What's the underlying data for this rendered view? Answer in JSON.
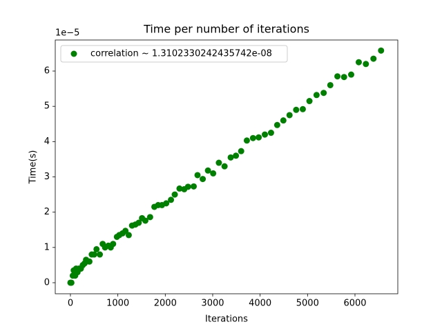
{
  "chart_data": {
    "type": "scatter",
    "title": "Time per number of iterations",
    "x_label": "Iterations",
    "y_label": "Time(s)",
    "y_offset_text": "1e−5",
    "legend_position": "upper left",
    "xlim": [
      -320,
      6903
    ],
    "ylim": [
      -0.313,
      6.88
    ],
    "xticks": [
      0,
      1000,
      2000,
      3000,
      4000,
      5000,
      6000
    ],
    "yticks": [
      0,
      1,
      2,
      3,
      4,
      5,
      6
    ],
    "series": [
      {
        "name": "correlation ~ 1.3102330242435742e-08",
        "color": "#008000",
        "x": [
          0,
          20,
          50,
          70,
          100,
          120,
          150,
          180,
          220,
          260,
          300,
          330,
          400,
          450,
          500,
          550,
          620,
          680,
          730,
          800,
          850,
          900,
          980,
          1030,
          1100,
          1160,
          1230,
          1300,
          1370,
          1440,
          1510,
          1580,
          1680,
          1770,
          1850,
          1930,
          2020,
          2120,
          2200,
          2300,
          2400,
          2480,
          2600,
          2680,
          2790,
          2900,
          3010,
          3130,
          3250,
          3380,
          3490,
          3600,
          3720,
          3850,
          3970,
          4100,
          4230,
          4360,
          4490,
          4620,
          4760,
          4900,
          5040,
          5190,
          5340,
          5480,
          5630,
          5770,
          5920,
          6080,
          6230,
          6390,
          6550
        ],
        "values": [
          0,
          0,
          0.2,
          0.35,
          0.2,
          0.4,
          0.3,
          0.4,
          0.4,
          0.5,
          0.55,
          0.65,
          0.6,
          0.8,
          0.8,
          0.95,
          0.8,
          1.1,
          1.0,
          1.05,
          1.0,
          1.1,
          1.3,
          1.35,
          1.4,
          1.47,
          1.35,
          1.62,
          1.65,
          1.7,
          1.83,
          1.76,
          1.86,
          2.15,
          2.2,
          2.2,
          2.25,
          2.35,
          2.5,
          2.67,
          2.65,
          2.72,
          2.73,
          3.05,
          2.94,
          3.18,
          3.1,
          3.4,
          3.3,
          3.55,
          3.6,
          3.73,
          4.03,
          4.1,
          4.12,
          4.2,
          4.25,
          4.47,
          4.6,
          4.75,
          4.9,
          4.92,
          5.15,
          5.32,
          5.38,
          5.6,
          5.85,
          5.83,
          5.9,
          6.25,
          6.2,
          6.35,
          6.58
        ]
      }
    ]
  }
}
